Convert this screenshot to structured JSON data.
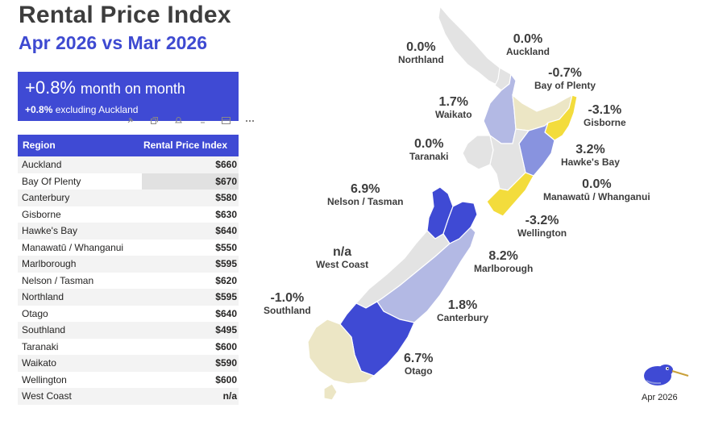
{
  "header": {
    "title": "Rental Price Index",
    "subtitle": "Apr 2026 vs Mar 2026"
  },
  "kpi": {
    "value": "+0.8%",
    "value_suffix": "month on month",
    "secondary_value": "+0.8%",
    "secondary_suffix": "excluding Auckland"
  },
  "table": {
    "col_region": "Region",
    "col_index": "Rental Price Index",
    "rows": [
      {
        "region": "Auckland",
        "value": "$660"
      },
      {
        "region": "Bay Of Plenty",
        "value": "$670"
      },
      {
        "region": "Canterbury",
        "value": "$580"
      },
      {
        "region": "Gisborne",
        "value": "$630"
      },
      {
        "region": "Hawke's Bay",
        "value": "$640"
      },
      {
        "region": "Manawatū / Whanganui",
        "value": "$550"
      },
      {
        "region": "Marlborough",
        "value": "$595"
      },
      {
        "region": "Nelson / Tasman",
        "value": "$620"
      },
      {
        "region": "Northland",
        "value": "$595"
      },
      {
        "region": "Otago",
        "value": "$640"
      },
      {
        "region": "Southland",
        "value": "$495"
      },
      {
        "region": "Taranaki",
        "value": "$600"
      },
      {
        "region": "Waikato",
        "value": "$590"
      },
      {
        "region": "Wellington",
        "value": "$600"
      },
      {
        "region": "West Coast",
        "value": "n/a"
      }
    ]
  },
  "map": {
    "labels": {
      "northland": {
        "value": "0.0%",
        "name": "Northland"
      },
      "auckland": {
        "value": "0.0%",
        "name": "Auckland"
      },
      "bay_of_plenty": {
        "value": "-0.7%",
        "name": "Bay of Plenty"
      },
      "waikato": {
        "value": "1.7%",
        "name": "Waikato"
      },
      "gisborne": {
        "value": "-3.1%",
        "name": "Gisborne"
      },
      "taranaki": {
        "value": "0.0%",
        "name": "Taranaki"
      },
      "hawkes_bay": {
        "value": "3.2%",
        "name": "Hawke's Bay"
      },
      "manawatu": {
        "value": "0.0%",
        "name": "Manawatū / Whanganui"
      },
      "nelson": {
        "value": "6.9%",
        "name": "Nelson / Tasman"
      },
      "wellington": {
        "value": "-3.2%",
        "name": "Wellington"
      },
      "west_coast": {
        "value": "n/a",
        "name": "West Coast"
      },
      "marlborough": {
        "value": "8.2%",
        "name": "Marlborough"
      },
      "southland": {
        "value": "-1.0%",
        "name": "Southland"
      },
      "canterbury": {
        "value": "1.8%",
        "name": "Canterbury"
      },
      "otago": {
        "value": "6.7%",
        "name": "Otago"
      }
    },
    "colors": {
      "neutral": "#e3e3e3",
      "light_positive": "#b3b9e4",
      "mid_positive": "#8893df",
      "strong_positive": "#3f4ad4",
      "light_negative": "#ece6c5",
      "strong_negative": "#f3dc3c"
    }
  },
  "footer": {
    "date": "Apr 2026"
  }
}
